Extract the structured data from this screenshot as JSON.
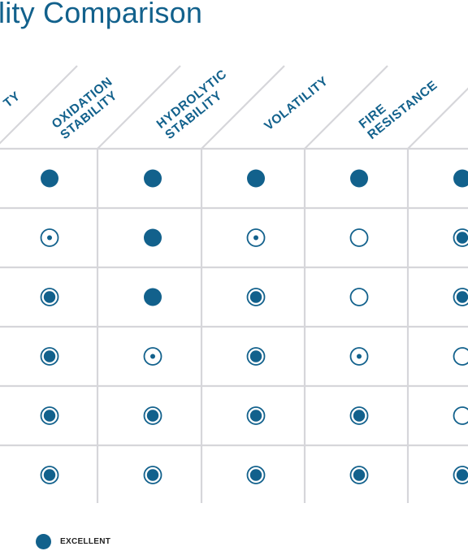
{
  "title": "lity Comparison",
  "columns": [
    {
      "lines": [
        "TY"
      ]
    },
    {
      "lines": [
        "OXIDATION",
        "STABILITY"
      ]
    },
    {
      "lines": [
        "HYDROLYTIC",
        "STABILITY"
      ]
    },
    {
      "lines": [
        "VOLATILITY"
      ]
    },
    {
      "lines": [
        "FIRE",
        "RESISTANCE"
      ]
    }
  ],
  "ratings_legend_order": [
    "excellent",
    "very-good",
    "good",
    "fair"
  ],
  "rows": [
    [
      "excellent",
      "excellent",
      "excellent",
      "excellent",
      "excellent"
    ],
    [
      "good",
      "excellent",
      "good",
      "fair",
      "very-good"
    ],
    [
      "very-good",
      "excellent",
      "very-good",
      "fair",
      "very-good"
    ],
    [
      "very-good",
      "good",
      "very-good",
      "good",
      "fair"
    ],
    [
      "very-good",
      "very-good",
      "very-good",
      "very-good",
      "fair"
    ],
    [
      "very-good",
      "very-good",
      "very-good",
      "very-good",
      "very-good"
    ]
  ],
  "legend": {
    "excellent_label": "EXCELLENT"
  },
  "colors": {
    "accent": "#12618c",
    "grid": "#d6d6da"
  }
}
